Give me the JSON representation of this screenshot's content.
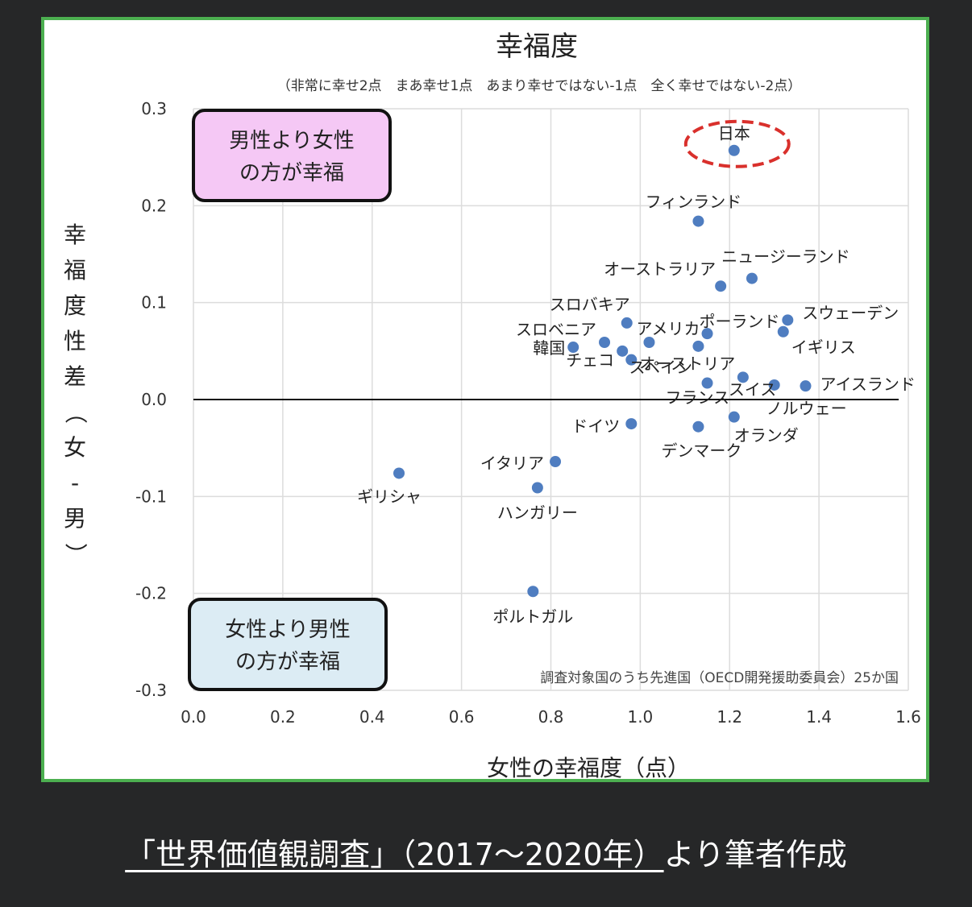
{
  "chart_data": {
    "type": "scatter",
    "title": "幸福度",
    "subtitle": "（非常に幸せ2点　まあ幸せ1点　あまり幸せではない-1点　全く幸せではない-2点）",
    "xlabel": "女性の幸福度（点）",
    "ylabel": "幸福度性差（女-男）",
    "xlim": [
      0.0,
      1.6
    ],
    "ylim": [
      -0.3,
      0.3
    ],
    "x_ticks": [
      "0.0",
      "0.2",
      "0.4",
      "0.6",
      "0.8",
      "1.0",
      "1.2",
      "1.4",
      "1.6"
    ],
    "y_ticks": [
      "0.3",
      "0.2",
      "0.1",
      "0.0",
      "-0.1",
      "-0.2",
      "-0.3"
    ],
    "grid": true,
    "point_color": "#4f7dc0",
    "points": [
      {
        "label": "日本",
        "x": 1.21,
        "y": 0.257,
        "highlight": true
      },
      {
        "label": "フィンランド",
        "x": 1.13,
        "y": 0.184
      },
      {
        "label": "オーストラリア",
        "x": 1.18,
        "y": 0.117
      },
      {
        "label": "ニュージーランド",
        "x": 1.25,
        "y": 0.125
      },
      {
        "label": "スロバキア",
        "x": 0.97,
        "y": 0.079
      },
      {
        "label": "スロベニア",
        "x": 0.92,
        "y": 0.059
      },
      {
        "label": "韓国",
        "x": 0.85,
        "y": 0.054
      },
      {
        "label": "チェコ",
        "x": 0.96,
        "y": 0.05
      },
      {
        "label": "アメリカ",
        "x": 1.02,
        "y": 0.059
      },
      {
        "label": "オーストリア",
        "x": 0.98,
        "y": 0.041
      },
      {
        "label": "スペイン",
        "x": 1.13,
        "y": 0.055
      },
      {
        "label": "ポーランド",
        "x": 1.15,
        "y": 0.068
      },
      {
        "label": "フランス",
        "x": 1.15,
        "y": 0.017
      },
      {
        "label": "スイス",
        "x": 1.23,
        "y": 0.023
      },
      {
        "label": "スウェーデン",
        "x": 1.33,
        "y": 0.082
      },
      {
        "label": "イギリス",
        "x": 1.32,
        "y": 0.07
      },
      {
        "label": "ノルウェー",
        "x": 1.3,
        "y": 0.015
      },
      {
        "label": "アイスランド",
        "x": 1.37,
        "y": 0.014
      },
      {
        "label": "オランダ",
        "x": 1.21,
        "y": -0.018
      },
      {
        "label": "デンマーク",
        "x": 1.13,
        "y": -0.028
      },
      {
        "label": "ドイツ",
        "x": 0.98,
        "y": -0.025
      },
      {
        "label": "イタリア",
        "x": 0.81,
        "y": -0.064
      },
      {
        "label": "ハンガリー",
        "x": 0.77,
        "y": -0.091
      },
      {
        "label": "ギリシャ",
        "x": 0.46,
        "y": -0.076
      },
      {
        "label": "ポルトガル",
        "x": 0.76,
        "y": -0.198
      }
    ],
    "annotations": {
      "top_box": [
        "男性より女性",
        "の方が幸福"
      ],
      "top_box_color": "#f5c8f5",
      "bottom_box": [
        "女性より男性",
        "の方が幸福"
      ],
      "bottom_box_color": "#dcecf4",
      "note": "調査対象国のうち先進国（OECD開発援助委員会）25か国",
      "highlight_color": "#d9302c"
    }
  },
  "caption": {
    "source": "「世界価値観調査」（2017〜2020年）",
    "rest": "より筆者作成"
  }
}
